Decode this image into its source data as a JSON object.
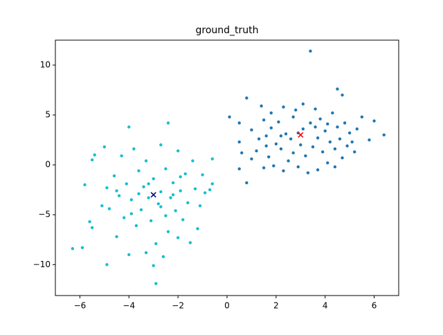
{
  "chart_data": {
    "type": "scatter",
    "title": "ground_truth",
    "xlim": [
      -7,
      7
    ],
    "ylim": [
      -13.1,
      12.5
    ],
    "xticks": [
      {
        "value": -6,
        "label": "−6"
      },
      {
        "value": -4,
        "label": "−4"
      },
      {
        "value": -2,
        "label": "−2"
      },
      0,
      2,
      4,
      6
    ],
    "yticks": [
      {
        "value": -10,
        "label": "−10"
      },
      {
        "value": -5,
        "label": "−5"
      },
      0,
      5,
      10
    ],
    "grid": false,
    "series": [
      {
        "color": "#1f77b4",
        "marker": "o",
        "x": [
          0.1,
          0.5,
          0.5,
          0.5,
          0.6,
          0.8,
          0.8,
          1,
          1,
          1.2,
          1.3,
          1.4,
          1.5,
          1.5,
          1.6,
          1.7,
          1.8,
          1.8,
          1.9,
          2,
          2.1,
          2.2,
          2.3,
          2.3,
          2.4,
          2.5,
          2.6,
          2.7,
          2.7,
          2.8,
          2.9,
          3,
          3.1,
          3.1,
          3.2,
          3.3,
          3.4,
          3.4,
          3.5,
          3.6,
          3.7,
          3.7,
          3.8,
          3.9,
          4,
          4.1,
          4.2,
          4.3,
          4.4,
          4.4,
          4.5,
          4.5,
          4.6,
          4.7,
          4.7,
          4.8,
          4.9,
          5,
          5.1,
          5.2,
          5.3,
          5.5,
          5.8,
          6,
          6.4,
          2.9,
          3.6,
          2.2,
          4.1,
          1.6
        ],
        "values": [
          4.8,
          4.2,
          2.3,
          -0.4,
          1.2,
          6.7,
          -1.8,
          3.5,
          0.6,
          1.4,
          2.6,
          5.9,
          4.5,
          -0.3,
          2.9,
          0.8,
          3.7,
          5.2,
          -0.1,
          2.1,
          4.3,
          1.6,
          5.8,
          -0.6,
          3.1,
          0.4,
          2.6,
          4.8,
          1.2,
          5.5,
          -0.2,
          2,
          6.1,
          3.6,
          0.9,
          -0.8,
          11.4,
          4.2,
          1.8,
          5.6,
          2.7,
          -0.5,
          4.6,
          1.3,
          3.4,
          0.2,
          2.3,
          5.2,
          -0.2,
          1.6,
          7.6,
          3.8,
          2.6,
          0.7,
          7,
          4.2,
          1.9,
          3.2,
          2.3,
          1.3,
          3.6,
          4.8,
          2.5,
          4.4,
          3,
          3.2,
          3.8,
          2.9,
          4.1,
          1.9
        ]
      },
      {
        "color": "#17becf",
        "marker": "o",
        "x": [
          -6.3,
          -5.9,
          -5.8,
          -5.6,
          -5.5,
          -5.5,
          -5.4,
          -5.1,
          -5,
          -4.9,
          -4.9,
          -4.8,
          -4.6,
          -4.5,
          -4.4,
          -4.3,
          -4.2,
          -4.1,
          -4,
          -4,
          -3.9,
          -3.8,
          -3.7,
          -3.6,
          -3.5,
          -3.4,
          -3.3,
          -3.3,
          -3.2,
          -3.1,
          -3,
          -3,
          -2.9,
          -2.9,
          -2.8,
          -2.7,
          -2.7,
          -2.6,
          -2.5,
          -2.5,
          -2.4,
          -2.4,
          -2.3,
          -2.2,
          -2.1,
          -2,
          -2,
          -1.9,
          -1.8,
          -1.7,
          -1.6,
          -1.5,
          -1.4,
          -1.3,
          -1.2,
          -1.1,
          -1,
          -0.9,
          -0.7,
          -0.6,
          -0.6,
          -3.6,
          -2.7,
          -3.9,
          -2.2,
          -3.2,
          -4.5,
          -1.9
        ],
        "values": [
          -8.4,
          -8.3,
          -2,
          -5.7,
          -6.3,
          0.5,
          1,
          -4.1,
          1.8,
          -10,
          -2.3,
          -4.4,
          -1.1,
          -7.2,
          -3.1,
          0.9,
          -5.3,
          -1.9,
          3.8,
          -9,
          -3.5,
          1.6,
          -6.1,
          -0.6,
          -4.5,
          -2.2,
          -8.8,
          0.4,
          -3.3,
          -5.6,
          -10.1,
          -1.4,
          -11.9,
          -7.9,
          -3.9,
          2,
          -2.7,
          -9.2,
          -5.1,
          -0.4,
          4.2,
          -6.7,
          -3.3,
          -1.8,
          -4.6,
          1.4,
          -7.3,
          -2.6,
          -5.5,
          -0.9,
          -3.8,
          -7.8,
          0.4,
          -2.4,
          -6.4,
          -4.1,
          -1,
          -2.8,
          -2.5,
          -1.9,
          0.6,
          -2.9,
          -4.2,
          -4.9,
          -3,
          -1.9,
          -2.6,
          -1.2
        ]
      },
      {
        "color": "#ff0000",
        "marker": "x",
        "x": [
          3
        ],
        "values": [
          3
        ]
      },
      {
        "color": "#00008b",
        "marker": "x",
        "x": [
          -3
        ],
        "values": [
          -3
        ]
      }
    ]
  }
}
